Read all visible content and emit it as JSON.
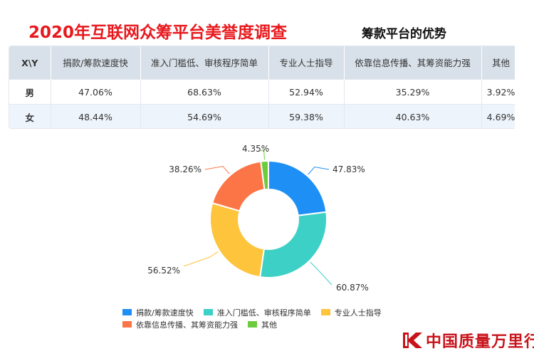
{
  "header": {
    "title": "2020年互联网众筹平台美誉度调查",
    "subtitle": "筹款平台的优势"
  },
  "table": {
    "corner": "X\\Y",
    "columns": [
      "捐款/筹款速度快",
      "准入门槛低、审核程序简单",
      "专业人士指导",
      "依靠信息传播、其筹资能力强",
      "其他"
    ],
    "rows": [
      {
        "label": "男",
        "values": [
          "47.06%",
          "68.63%",
          "52.94%",
          "35.29%",
          "3.92%"
        ]
      },
      {
        "label": "女",
        "values": [
          "48.44%",
          "54.69%",
          "59.38%",
          "40.63%",
          "4.69%"
        ]
      }
    ]
  },
  "chart_data": {
    "type": "pie",
    "donut": true,
    "categories": [
      "捐款/筹款速度快",
      "准入门槛低、审核程序简单",
      "专业人士指导",
      "依靠信息传播、其筹资能力强",
      "其他"
    ],
    "values": [
      47.83,
      60.87,
      56.52,
      38.26,
      4.35
    ],
    "data_labels": [
      "47.83%",
      "60.87%",
      "56.52%",
      "38.26%",
      "4.35%"
    ],
    "colors": [
      "#1e90f5",
      "#3dd0c6",
      "#fdc43c",
      "#fc7546",
      "#6dcc3e"
    ],
    "legend_position": "bottom"
  },
  "logo": {
    "text": "中国质量万里行"
  }
}
